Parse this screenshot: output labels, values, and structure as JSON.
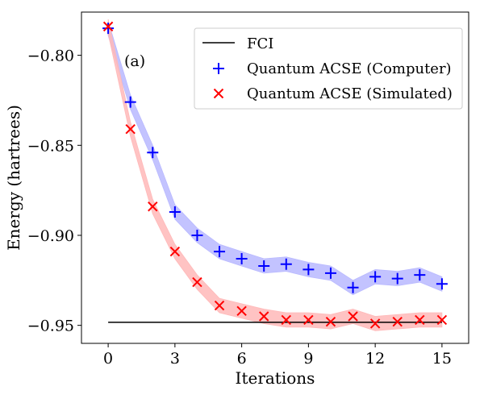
{
  "chart_data": {
    "type": "line",
    "title": "",
    "xlabel": "Iterations",
    "ylabel": "Energy (hartrees)",
    "annotation": "(a)",
    "xlim": [
      -1.2,
      16.2
    ],
    "ylim": [
      -0.96,
      -0.776
    ],
    "xticks": [
      0,
      3,
      6,
      9,
      12,
      15
    ],
    "yticks": [
      -0.95,
      -0.9,
      -0.85,
      -0.8
    ],
    "ytick_labels": [
      "−0.95",
      "−0.90",
      "−0.85",
      "−0.80"
    ],
    "grid": false,
    "legend_position": "top-right",
    "reference_line": {
      "name": "FCI",
      "x": [
        0,
        15
      ],
      "y": [
        -0.9483,
        -0.9483
      ],
      "color": "#000000"
    },
    "series": [
      {
        "name": "Quantum ACSE (Computer)",
        "marker": "plus",
        "color": "#0000ff",
        "band_color": "#b9b9ff",
        "band_halfwidth": 0.004,
        "x": [
          0,
          1,
          2,
          3,
          4,
          5,
          6,
          7,
          8,
          9,
          10,
          11,
          12,
          13,
          14,
          15
        ],
        "values": [
          -0.785,
          -0.826,
          -0.854,
          -0.887,
          -0.9,
          -0.909,
          -0.913,
          -0.917,
          -0.916,
          -0.919,
          -0.921,
          -0.929,
          -0.923,
          -0.924,
          -0.922,
          -0.927
        ]
      },
      {
        "name": "Quantum ACSE (Simulated)",
        "marker": "x",
        "color": "#ff0000",
        "band_color": "#ffb9b9",
        "band_halfwidth": 0.004,
        "x": [
          0,
          1,
          2,
          3,
          4,
          5,
          6,
          7,
          8,
          9,
          10,
          11,
          12,
          13,
          14,
          15
        ],
        "values": [
          -0.784,
          -0.841,
          -0.884,
          -0.909,
          -0.926,
          -0.939,
          -0.942,
          -0.945,
          -0.947,
          -0.947,
          -0.948,
          -0.945,
          -0.949,
          -0.948,
          -0.947,
          -0.947
        ]
      }
    ]
  }
}
